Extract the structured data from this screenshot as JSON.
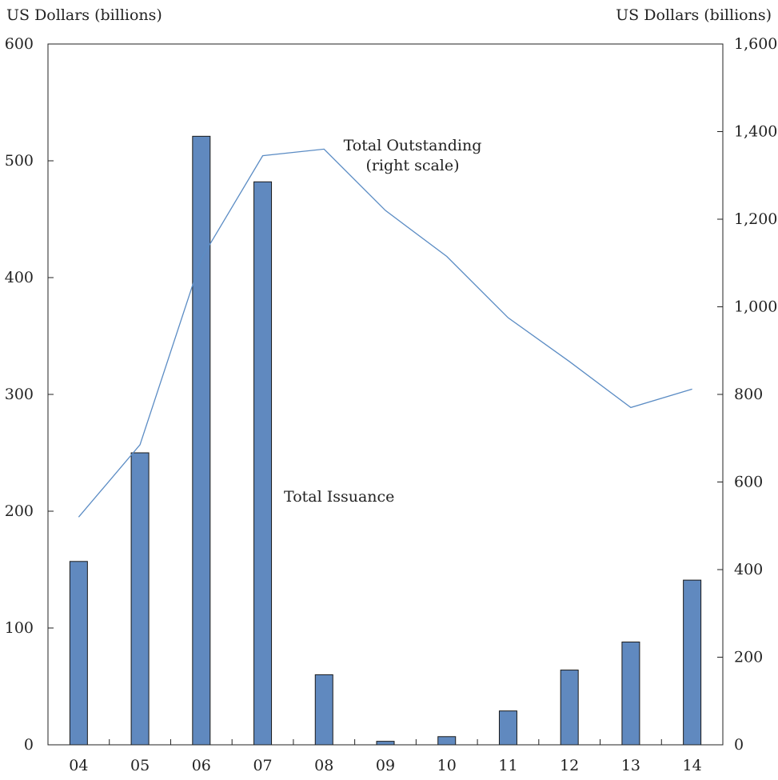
{
  "chart_data": {
    "type": "bar",
    "categories": [
      "04",
      "05",
      "06",
      "07",
      "08",
      "09",
      "10",
      "11",
      "12",
      "13",
      "14"
    ],
    "series": [
      {
        "name": "Total Issuance",
        "type": "bar",
        "axis": "left",
        "values": [
          157,
          250,
          521,
          482,
          60,
          3,
          7,
          29,
          64,
          88,
          141
        ],
        "color": "#6089bf"
      },
      {
        "name": "Total Outstanding",
        "type": "line",
        "axis": "right",
        "values": [
          520,
          685,
          1110,
          1345,
          1360,
          1220,
          1115,
          975,
          875,
          770,
          812
        ],
        "color": "#5b8cc4"
      }
    ],
    "ylabel_left": "US Dollars (billions)",
    "ylabel_right": "US Dollars (billions)",
    "ylim_left": [
      0,
      600
    ],
    "ylim_right": [
      0,
      1600
    ],
    "yticks_left": [
      "0",
      "100",
      "200",
      "300",
      "400",
      "500",
      "600"
    ],
    "yticks_right": [
      "0",
      "200",
      "400",
      "600",
      "800",
      "1,000",
      "1,200",
      "1,400",
      "1,600"
    ],
    "annotations": {
      "outstanding_line1": "Total Outstanding",
      "outstanding_line2": "(right scale)",
      "issuance": "Total Issuance"
    },
    "grid": false,
    "legend": "none"
  }
}
